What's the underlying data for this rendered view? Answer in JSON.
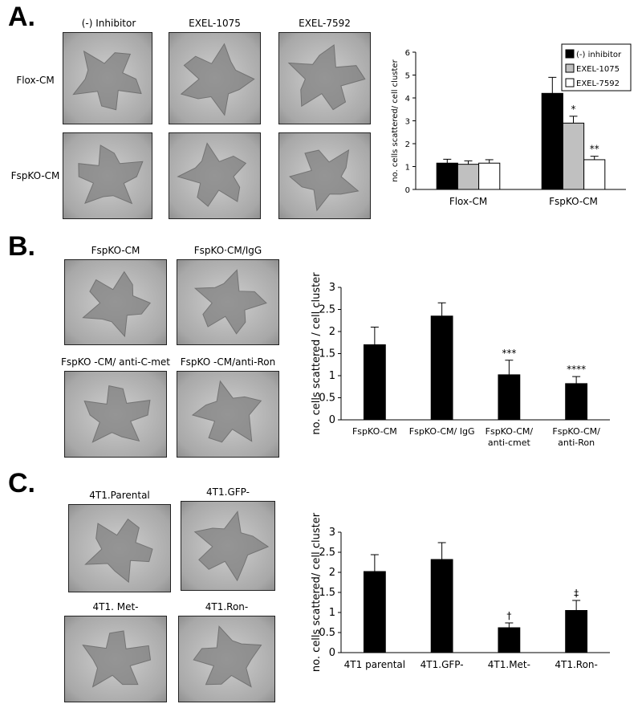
{
  "panels": [
    {
      "letter": "A.",
      "column_labels": [
        "(-) Inhibitor",
        "EXEL-1075",
        "EXEL-7592"
      ],
      "row_labels": [
        "Flox-CM",
        "FspKO-CM"
      ]
    },
    {
      "letter": "B.",
      "image_labels": [
        "FspKO-CM",
        "FspKO·CM/IgG",
        "FspKO -CM/ anti-C-met",
        "FspKO -CM/anti-Ron"
      ]
    },
    {
      "letter": "C.",
      "image_labels": [
        "4T1.Parental",
        "4T1.GFP-",
        "4T1. Met-",
        "4T1.Ron-"
      ]
    }
  ],
  "chart_data": [
    {
      "type": "bar",
      "y_label": "no. cells scattered/ cell cluster",
      "categories": [
        "Flox-CM",
        "FspKO-CM"
      ],
      "series": [
        {
          "name": "(-) inhibitor",
          "color": "#000000",
          "values": [
            1.15,
            4.2
          ],
          "errors": [
            0.17,
            0.7
          ],
          "markers": [
            null,
            null
          ]
        },
        {
          "name": "EXEL-1075",
          "color": "#c0c0c0",
          "values": [
            1.1,
            2.9
          ],
          "errors": [
            0.15,
            0.3
          ],
          "markers": [
            null,
            "*"
          ]
        },
        {
          "name": "EXEL-7592",
          "color": "#ffffff",
          "values": [
            1.15,
            1.3
          ],
          "errors": [
            0.15,
            0.15
          ],
          "markers": [
            null,
            "**"
          ]
        }
      ],
      "ylim": [
        0,
        6
      ],
      "yticks": [
        0,
        1,
        2,
        3,
        4,
        5,
        6
      ],
      "legend": "top-right"
    },
    {
      "type": "bar",
      "y_label": "no. cells scattered / cell cluster",
      "categories": [
        "FspKO-CM",
        "FspKO-CM/ IgG",
        "FspKO-CM/ anti-cmet",
        "FspKO-CM/ anti-Ron"
      ],
      "series": [
        {
          "color": "#000000",
          "values": [
            1.7,
            2.35,
            1.02,
            0.82
          ],
          "errors": [
            0.4,
            0.3,
            0.33,
            0.16
          ],
          "markers": [
            null,
            null,
            "***",
            "****"
          ]
        }
      ],
      "ylim": [
        0,
        3
      ],
      "yticks": [
        0,
        0.5,
        1,
        1.5,
        2,
        2.5,
        3
      ]
    },
    {
      "type": "bar",
      "y_label": "no. cells scattered/ cell cluster",
      "categories": [
        "4T1 parental",
        "4T1.GFP-",
        "4T1.Met-",
        "4T1.Ron-"
      ],
      "series": [
        {
          "color": "#000000",
          "values": [
            2.02,
            2.32,
            0.62,
            1.05
          ],
          "errors": [
            0.42,
            0.42,
            0.12,
            0.25
          ],
          "markers": [
            null,
            null,
            "†",
            "‡"
          ]
        }
      ],
      "ylim": [
        0,
        3
      ],
      "yticks": [
        0,
        0.5,
        1,
        1.5,
        2,
        2.5,
        3
      ]
    }
  ]
}
